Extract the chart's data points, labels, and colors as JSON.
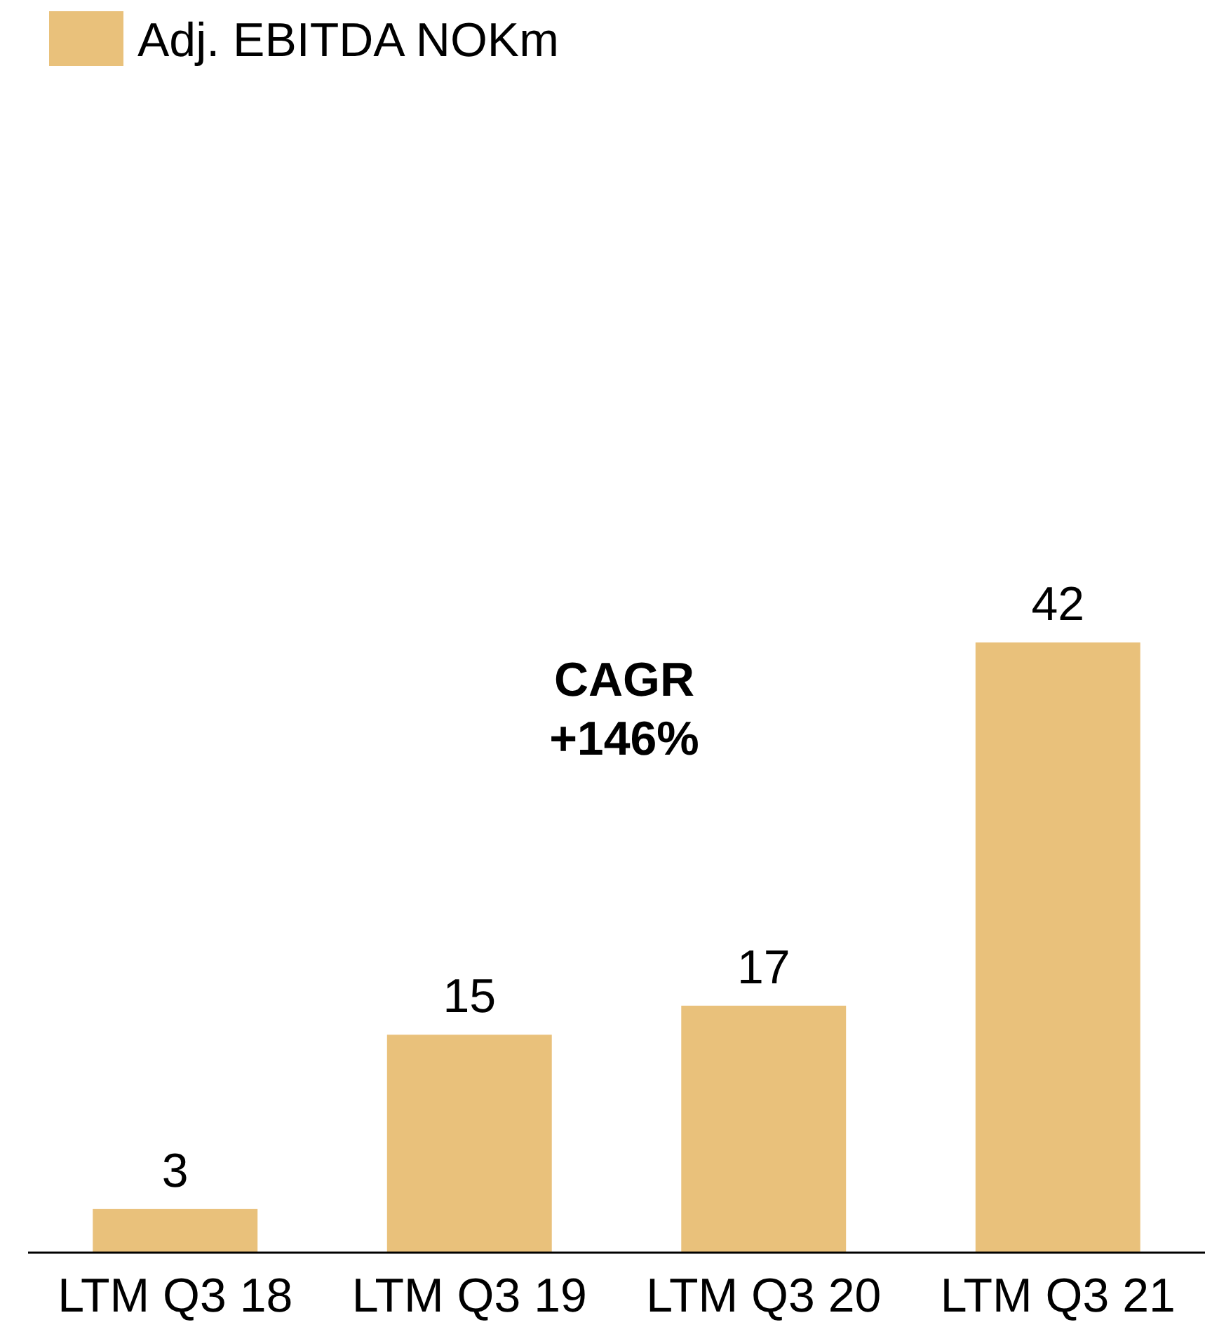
{
  "chart_data": {
    "type": "bar",
    "categories": [
      "LTM Q3 18",
      "LTM Q3 19",
      "LTM Q3 20",
      "LTM Q3 21"
    ],
    "series": [
      {
        "name": "Adj. EBITDA NOKm",
        "color": "#e9c17b",
        "values": [
          3,
          15,
          17,
          42
        ]
      }
    ],
    "data_labels": true,
    "legend": "top left",
    "annotations": [
      "CAGR\n+146%"
    ]
  }
}
